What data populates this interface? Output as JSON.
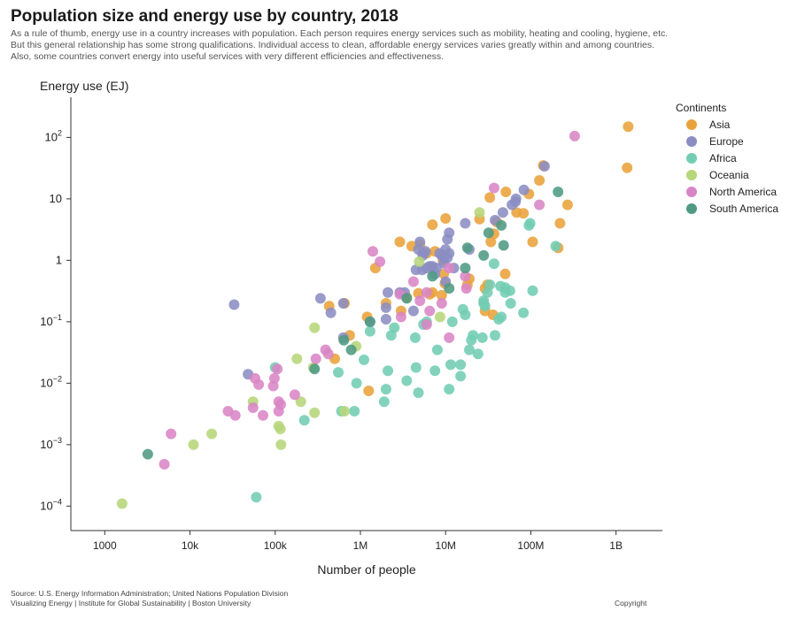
{
  "title": "Population size and energy use by country, 2018",
  "subtitle": [
    "As a rule of thumb, energy use in a country increases with population. Each person requires energy services such as mobility, heating and cooling, hygiene, etc.",
    "But this general relationship has some strong qualifications. Individual access to clean, affordable energy services varies greatly within and among countries.",
    "Also, some countries convert energy into useful services with very different efficiencies and effectiveness."
  ],
  "footer": {
    "source": "Source: U.S. Energy Information Administration; United Nations Population Division",
    "credit": "Visualizing Energy | Institute for Global Sustainability | Boston University",
    "copyright": "Copyright"
  },
  "chart_data": {
    "type": "scatter",
    "xlabel": "Number of people",
    "ylabel": "Energy use (EJ)",
    "x_scale": "log",
    "y_scale": "log",
    "xlim": [
      400,
      3500000000
    ],
    "ylim": [
      4e-05,
      450
    ],
    "x_ticks": [
      {
        "value": 1000,
        "label": "1000"
      },
      {
        "value": 10000,
        "label": "10k"
      },
      {
        "value": 100000,
        "label": "100k"
      },
      {
        "value": 1000000,
        "label": "1M"
      },
      {
        "value": 10000000,
        "label": "10M"
      },
      {
        "value": 100000000,
        "label": "100M"
      },
      {
        "value": 1000000000,
        "label": "1B"
      }
    ],
    "y_ticks": [
      {
        "value": 0.0001,
        "base": "10",
        "exp": "−4"
      },
      {
        "value": 0.001,
        "base": "10",
        "exp": "−3"
      },
      {
        "value": 0.01,
        "base": "10",
        "exp": "−2"
      },
      {
        "value": 0.1,
        "base": "10",
        "exp": "−1"
      },
      {
        "value": 1,
        "base": "1",
        "exp": ""
      },
      {
        "value": 10,
        "base": "10",
        "exp": ""
      },
      {
        "value": 100,
        "base": "10",
        "exp": "2"
      }
    ],
    "grid": false,
    "legend": {
      "title": "Continents",
      "position": "top-right"
    },
    "series": [
      {
        "name": "Asia",
        "color": "#e9a23b",
        "points": [
          [
            1390000000,
            150
          ],
          [
            1350000000,
            32
          ],
          [
            140000000,
            35
          ],
          [
            126000000,
            20
          ],
          [
            95000000,
            12
          ],
          [
            270000000,
            8
          ],
          [
            220000000,
            4
          ],
          [
            105000000,
            2
          ],
          [
            210000000,
            1.6
          ],
          [
            51000000,
            13
          ],
          [
            33000000,
            10.5
          ],
          [
            68000000,
            6
          ],
          [
            25000000,
            4.7
          ],
          [
            40000000,
            4.2
          ],
          [
            82000000,
            5.8
          ],
          [
            37000000,
            2.7
          ],
          [
            34000000,
            2
          ],
          [
            10000000,
            4.8
          ],
          [
            7000000,
            3.8
          ],
          [
            4000000,
            1.7
          ],
          [
            5000000,
            1.8
          ],
          [
            2900000,
            2
          ],
          [
            6000000,
            1.3
          ],
          [
            7500000,
            1.4
          ],
          [
            9300000,
            1
          ],
          [
            9500000,
            0.6
          ],
          [
            1500000,
            0.75
          ],
          [
            50000000,
            0.6
          ],
          [
            31000000,
            0.4
          ],
          [
            19000000,
            0.5
          ],
          [
            18000000,
            0.4
          ],
          [
            29000000,
            0.35
          ],
          [
            29000000,
            0.15
          ],
          [
            36000000,
            0.13
          ],
          [
            9000000,
            0.27
          ],
          [
            6500000,
            0.28
          ],
          [
            4800000,
            0.29
          ],
          [
            3500000,
            0.25
          ],
          [
            3000000,
            0.15
          ],
          [
            1200000,
            0.12
          ],
          [
            650000,
            0.2
          ],
          [
            430000,
            0.18
          ],
          [
            750000,
            0.06
          ],
          [
            500000,
            0.025
          ],
          [
            1250000,
            0.0075
          ],
          [
            7000000,
            0.3
          ],
          [
            9800000,
            0.42
          ],
          [
            2000000,
            0.2
          ]
        ]
      },
      {
        "name": "Europe",
        "color": "#8b8dc3",
        "points": [
          [
            145000000,
            34
          ],
          [
            83000000,
            14
          ],
          [
            67000000,
            10
          ],
          [
            66000000,
            9
          ],
          [
            60000000,
            8
          ],
          [
            47000000,
            6
          ],
          [
            38000000,
            4.5
          ],
          [
            17000000,
            4
          ],
          [
            11000000,
            2.8
          ],
          [
            10500000,
            2.2
          ],
          [
            11000000,
            1.3
          ],
          [
            10000000,
            1.5
          ],
          [
            10500000,
            1.1
          ],
          [
            9600000,
            1.1
          ],
          [
            9000000,
            1.2
          ],
          [
            8500000,
            1.3
          ],
          [
            5800000,
            1.4
          ],
          [
            5400000,
            1.2
          ],
          [
            5000000,
            2
          ],
          [
            4800000,
            1.5
          ],
          [
            5400000,
            1.3
          ],
          [
            7000000,
            0.8
          ],
          [
            7800000,
            0.75
          ],
          [
            10000000,
            0.45
          ],
          [
            3300000,
            0.3
          ],
          [
            2900000,
            0.3
          ],
          [
            2100000,
            0.3
          ],
          [
            2000000,
            0.17
          ],
          [
            2000000,
            0.11
          ],
          [
            1300000,
            0.1
          ],
          [
            4200000,
            0.15
          ],
          [
            4500000,
            0.7
          ],
          [
            5300000,
            0.7
          ],
          [
            6000000,
            0.75
          ],
          [
            6500000,
            0.8
          ],
          [
            7500000,
            0.6
          ],
          [
            9500000,
            0.9
          ],
          [
            12500000,
            0.75
          ],
          [
            19000000,
            1.5
          ],
          [
            630000,
            0.2
          ],
          [
            450000,
            0.14
          ],
          [
            340000,
            0.24
          ],
          [
            33000,
            0.19
          ],
          [
            630000,
            0.055
          ],
          [
            48000,
            0.014
          ]
        ]
      },
      {
        "name": "Africa",
        "color": "#72cdb3",
        "points": [
          [
            196000000,
            1.7
          ],
          [
            98000000,
            4
          ],
          [
            105000000,
            0.32
          ],
          [
            82000000,
            0.14
          ],
          [
            57000000,
            0.32
          ],
          [
            58000000,
            0.2
          ],
          [
            50000000,
            0.36
          ],
          [
            44000000,
            0.38
          ],
          [
            42000000,
            0.11
          ],
          [
            37000000,
            0.88
          ],
          [
            31000000,
            0.3
          ],
          [
            28000000,
            0.22
          ],
          [
            29000000,
            0.18
          ],
          [
            27000000,
            0.055
          ],
          [
            24000000,
            0.03
          ],
          [
            21000000,
            0.06
          ],
          [
            20000000,
            0.05
          ],
          [
            19000000,
            0.035
          ],
          [
            17000000,
            0.13
          ],
          [
            16000000,
            0.16
          ],
          [
            15000000,
            0.02
          ],
          [
            15000000,
            0.013
          ],
          [
            12000000,
            0.1
          ],
          [
            11500000,
            0.02
          ],
          [
            11000000,
            0.008
          ],
          [
            8000000,
            0.035
          ],
          [
            7500000,
            0.016
          ],
          [
            6000000,
            0.1
          ],
          [
            5500000,
            0.09
          ],
          [
            4800000,
            0.007
          ],
          [
            4500000,
            0.018
          ],
          [
            4400000,
            0.055
          ],
          [
            3500000,
            0.011
          ],
          [
            2500000,
            0.08
          ],
          [
            2300000,
            0.06
          ],
          [
            2100000,
            0.016
          ],
          [
            2000000,
            0.008
          ],
          [
            1900000,
            0.005
          ],
          [
            1300000,
            0.07
          ],
          [
            1100000,
            0.024
          ],
          [
            900000,
            0.01
          ],
          [
            850000,
            0.0035
          ],
          [
            600000,
            0.0035
          ],
          [
            550000,
            0.015
          ],
          [
            220000,
            0.0025
          ],
          [
            100000,
            0.018
          ],
          [
            60000,
            0.00014
          ],
          [
            33000000,
            0.4
          ],
          [
            28000000,
            0.2
          ],
          [
            45000000,
            0.12
          ],
          [
            38000000,
            0.06
          ],
          [
            50000000,
            0.3
          ],
          [
            95000000,
            3.7
          ]
        ]
      },
      {
        "name": "Oceania",
        "color": "#b6d67a",
        "points": [
          [
            25000000,
            6
          ],
          [
            4900000,
            0.95
          ],
          [
            8600000,
            0.12
          ],
          [
            890000,
            0.04
          ],
          [
            290000,
            0.08
          ],
          [
            280000,
            0.018
          ],
          [
            180000,
            0.025
          ],
          [
            200000,
            0.005
          ],
          [
            290000,
            0.0033
          ],
          [
            650000,
            0.0035
          ],
          [
            110000,
            0.002
          ],
          [
            115000,
            0.0018
          ],
          [
            117000,
            0.001
          ],
          [
            55000,
            0.005
          ],
          [
            18000,
            0.0015
          ],
          [
            11000,
            0.001
          ],
          [
            1600,
            0.00011
          ]
        ]
      },
      {
        "name": "North America",
        "color": "#d985c5",
        "points": [
          [
            327000000,
            105
          ],
          [
            126000000,
            8
          ],
          [
            37000000,
            15
          ],
          [
            17000000,
            0.55
          ],
          [
            11000000,
            0.75
          ],
          [
            9000000,
            0.2
          ],
          [
            6500000,
            0.15
          ],
          [
            6000000,
            0.3
          ],
          [
            5000000,
            0.22
          ],
          [
            4200000,
            0.45
          ],
          [
            3000000,
            0.12
          ],
          [
            2900000,
            0.28
          ],
          [
            1700000,
            0.95
          ],
          [
            1400000,
            1.4
          ],
          [
            17500000,
            0.35
          ],
          [
            11000000,
            0.055
          ],
          [
            6000000,
            0.09
          ],
          [
            390000,
            0.035
          ],
          [
            420000,
            0.03
          ],
          [
            300000,
            0.025
          ],
          [
            98000,
            0.012
          ],
          [
            106000,
            0.017
          ],
          [
            95000,
            0.009
          ],
          [
            110000,
            0.005
          ],
          [
            116000,
            0.0045
          ],
          [
            110000,
            0.0035
          ],
          [
            170000,
            0.0065
          ],
          [
            72000,
            0.003
          ],
          [
            55000,
            0.004
          ],
          [
            64000,
            0.0095
          ],
          [
            58000,
            0.012
          ],
          [
            34000,
            0.003
          ],
          [
            28000,
            0.0035
          ],
          [
            6000,
            0.0015
          ],
          [
            5000,
            0.00048
          ]
        ]
      },
      {
        "name": "South America",
        "color": "#4e9a83",
        "points": [
          [
            209000000,
            13
          ],
          [
            45000000,
            3.7
          ],
          [
            48000000,
            1.75
          ],
          [
            32000000,
            2.8
          ],
          [
            28000000,
            1.2
          ],
          [
            18000000,
            1.6
          ],
          [
            17000000,
            0.75
          ],
          [
            11000000,
            0.35
          ],
          [
            7000000,
            0.55
          ],
          [
            3500000,
            0.24
          ],
          [
            1300000,
            0.1
          ],
          [
            780000,
            0.035
          ],
          [
            640000,
            0.05
          ],
          [
            290000,
            0.017
          ],
          [
            3200,
            0.0007
          ]
        ]
      }
    ]
  }
}
